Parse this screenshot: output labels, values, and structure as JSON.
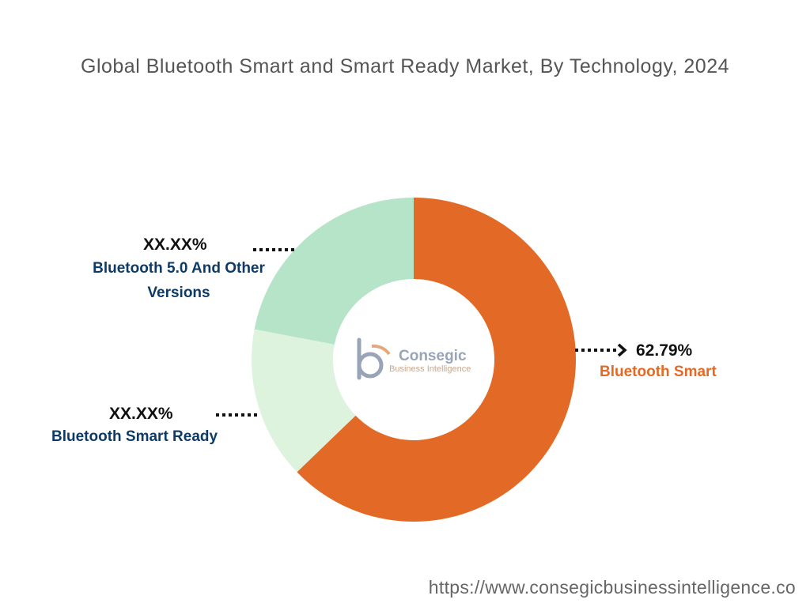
{
  "chart_data": {
    "type": "pie",
    "title": "Global Bluetooth Smart and Smart Ready Market, By Technology, 2024",
    "categories": [
      "Bluetooth Smart",
      "Bluetooth Smart Ready",
      "Bluetooth 5.0 And Other Versions"
    ],
    "values": [
      62.79,
      15.21,
      22.0
    ],
    "value_labels": [
      "62.79%",
      "XX.XX%",
      "XX.XX%"
    ],
    "colors": [
      "#E36A26",
      "#DDF3DD",
      "#B5E4C8"
    ],
    "label_colors": [
      "#E36A26",
      "#0D3A66",
      "#0D3A66"
    ]
  },
  "footer": {
    "url": "https://www.consegicbusinessintelligence.co"
  },
  "watermark": {
    "line1": "Consegic",
    "line2": "Business Intelligence"
  },
  "colors": {
    "leader": "#111111",
    "title": "#555555"
  }
}
